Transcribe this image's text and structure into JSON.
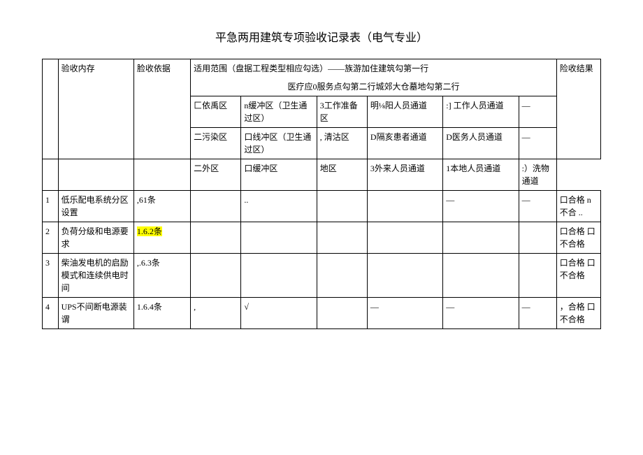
{
  "title": "平急两用建筑专项验收记录表（电气专业）",
  "header": {
    "col_num": "",
    "col_content": "验收内存",
    "col_basis": "脸收依据",
    "scope_line1": "适用范围（盘据工程类型相应勾选）——族游加住建筑勾第一行",
    "scope_line2": "医疗应0服务点勾第二行城郊大仓墓地勾第二行",
    "col_result": "险收结果"
  },
  "subheaders": {
    "row1": {
      "c1": "匚依禹区",
      "c2": "n缓冲区（卫生通过区）",
      "c3": "3工作准备区",
      "c4": "明⅛阳人员通道",
      "c5": ":] 工作人员通道",
      "c6": "—"
    },
    "row2": {
      "c1": "二污染区",
      "c2": "口线冲区（卫生通过区）",
      "c3": ", 清沽区",
      "c4": "D隔亥患者通道",
      "c5": "D医务人员通道",
      "c6": "—"
    },
    "row3": {
      "c1": "二外区",
      "c2": "口缓冲区",
      "c3": "地区",
      "c4": "3外来人员通道",
      "c5": "1本地人员通道",
      "c6": ":）洗物通道"
    }
  },
  "rows": [
    {
      "num": "1",
      "content": "低乐配电系统分区设置",
      "basis": ",61条",
      "basis_highlight": false,
      "cells": [
        "",
        "..",
        "",
        "",
        "—",
        "—"
      ],
      "result": "口合格\nn不合\n.."
    },
    {
      "num": "2",
      "content": "负荷分级和电源要求",
      "basis": "1.6.2条",
      "basis_highlight": true,
      "cells": [
        "",
        "",
        "",
        "",
        "",
        ""
      ],
      "result": "口合格\n口不合格"
    },
    {
      "num": "3",
      "content": "柴油发电机的启励模式和连续供电时间",
      "basis": ",.6.3条",
      "basis_highlight": false,
      "cells": [
        "",
        "",
        "",
        "",
        "",
        ""
      ],
      "result": "口合格\n口不合格"
    },
    {
      "num": "4",
      "content": "UPS不间断电源装谓",
      "basis": "1.6.4条",
      "basis_highlight": false,
      "cells": [
        ",",
        "√",
        "",
        "—",
        "—",
        "—"
      ],
      "result": "，合格\n口不合格"
    }
  ]
}
